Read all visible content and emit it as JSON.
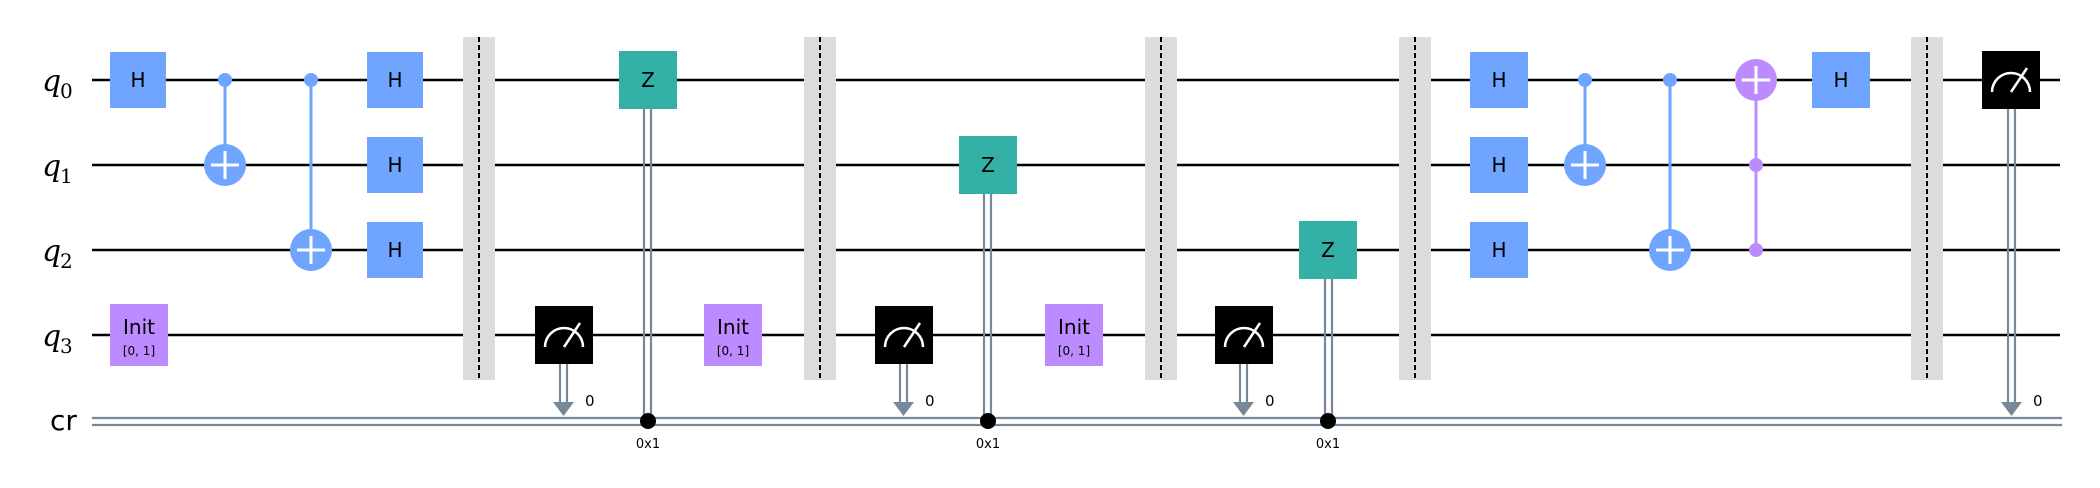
{
  "qubit_labels": [
    {
      "name": "q",
      "sub": "0"
    },
    {
      "name": "q",
      "sub": "1"
    },
    {
      "name": "q",
      "sub": "2"
    },
    {
      "name": "q",
      "sub": "3"
    }
  ],
  "classical_register": "cr",
  "colors": {
    "h_gate": "#6fa4ff",
    "z_gate": "#33b1a7",
    "init_gate": "#bb8bff",
    "measure_box": "#000000",
    "barrier": "#dcdcdc",
    "classical_wire": "#778899",
    "toffoli": "#bb8bff"
  },
  "gates": {
    "h": "H",
    "z": "Z",
    "init": "Init",
    "init_params": "[0, 1]"
  },
  "labels": {
    "measure_bit": "0",
    "condition_value": "0x1"
  },
  "circuit_sequence": [
    "H q0",
    "CX q0->q1",
    "CX q0->q2",
    "H q0",
    "H q1",
    "H q2",
    "Init q3",
    "barrier",
    "Measure q3->cr",
    "Z q0 if cr==0x1",
    "Init q3",
    "barrier",
    "Measure q3->cr",
    "Z q1 if cr==0x1",
    "Init q3",
    "barrier",
    "Measure q3->cr",
    "Z q2 if cr==0x1",
    "barrier",
    "H q0",
    "H q1",
    "H q2",
    "CX q0->q1",
    "CX q0->q2",
    "CCX q1,q2->q0",
    "H q0",
    "barrier",
    "Measure q0->cr"
  ]
}
